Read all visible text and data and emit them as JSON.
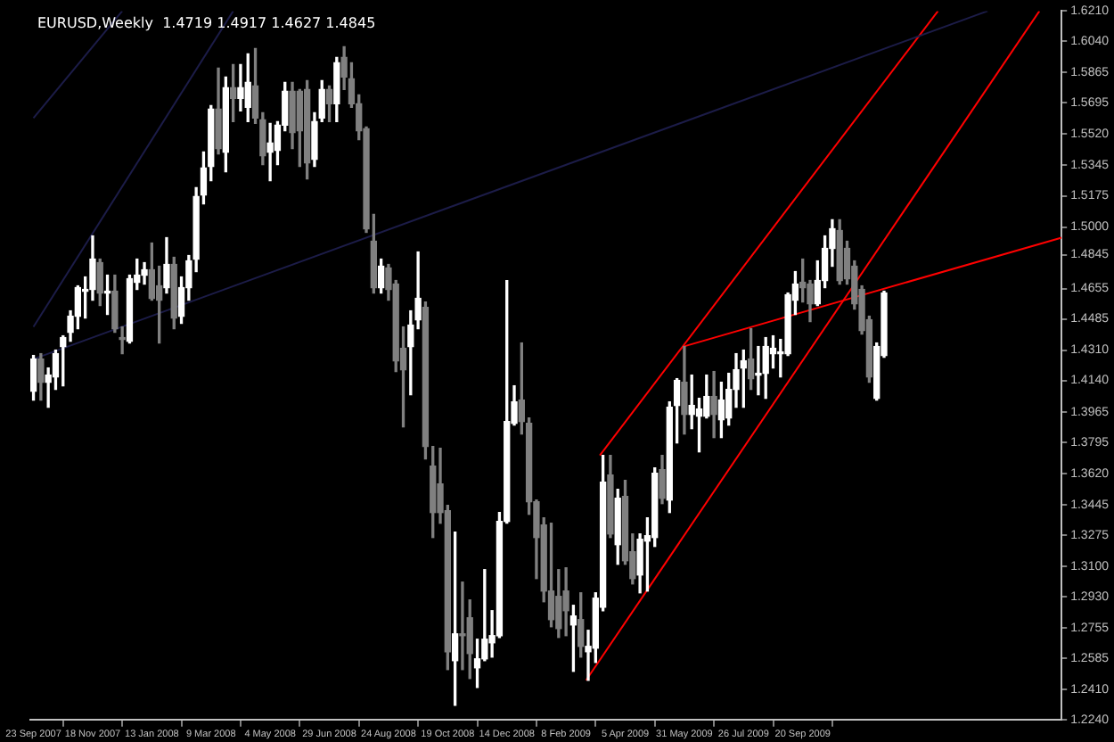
{
  "chart_data": {
    "type": "candlestick",
    "title": "EURUSD,Weekly  1.4719 1.4917 1.4627 1.4845",
    "x": [
      "2007-09-23",
      "2007-09-30",
      "2007-10-07",
      "2007-10-14",
      "2007-10-21",
      "2007-10-28",
      "2007-11-04",
      "2007-11-11",
      "2007-11-18",
      "2007-11-25",
      "2007-12-02",
      "2007-12-09",
      "2007-12-16",
      "2007-12-23",
      "2007-12-30",
      "2008-01-06",
      "2008-01-13",
      "2008-01-20",
      "2008-01-27",
      "2008-02-03",
      "2008-02-10",
      "2008-02-17",
      "2008-02-24",
      "2008-03-02",
      "2008-03-09",
      "2008-03-16",
      "2008-03-23",
      "2008-03-30",
      "2008-04-06",
      "2008-04-13",
      "2008-04-20",
      "2008-04-27",
      "2008-05-04",
      "2008-05-11",
      "2008-05-18",
      "2008-05-25",
      "2008-06-01",
      "2008-06-08",
      "2008-06-15",
      "2008-06-22",
      "2008-06-29",
      "2008-07-06",
      "2008-07-13",
      "2008-07-20",
      "2008-07-27",
      "2008-08-03",
      "2008-08-10",
      "2008-08-17",
      "2008-08-24",
      "2008-08-31",
      "2008-09-07",
      "2008-09-14",
      "2008-09-21",
      "2008-09-28",
      "2008-10-05",
      "2008-10-12",
      "2008-10-19",
      "2008-10-26",
      "2008-11-02",
      "2008-11-09",
      "2008-11-16",
      "2008-11-23",
      "2008-11-30",
      "2008-12-07",
      "2008-12-14",
      "2008-12-21",
      "2008-12-28",
      "2009-01-04",
      "2009-01-11",
      "2009-01-18",
      "2009-01-25",
      "2009-02-01",
      "2009-02-08",
      "2009-02-15",
      "2009-02-22",
      "2009-03-01",
      "2009-03-08",
      "2009-03-15",
      "2009-03-22",
      "2009-03-29",
      "2009-04-05",
      "2009-04-12",
      "2009-04-19",
      "2009-04-26",
      "2009-05-03",
      "2009-05-10",
      "2009-05-17",
      "2009-05-24",
      "2009-05-31",
      "2009-06-07",
      "2009-06-14",
      "2009-06-21",
      "2009-06-28",
      "2009-07-05",
      "2009-07-12",
      "2009-07-19",
      "2009-07-26",
      "2009-08-02",
      "2009-08-09",
      "2009-08-16",
      "2009-08-23",
      "2009-08-30",
      "2009-09-06",
      "2009-09-13",
      "2009-09-20",
      "2009-09-27",
      "2009-10-04",
      "2009-10-11",
      "2009-10-18",
      "2009-10-25",
      "2009-11-01",
      "2009-11-08",
      "2009-11-15",
      "2009-11-22",
      "2009-11-29",
      "2009-12-06"
    ],
    "ohlc": [
      [
        1.408,
        1.428,
        1.403,
        1.426
      ],
      [
        1.426,
        1.429,
        1.403,
        1.413
      ],
      [
        1.413,
        1.421,
        1.399,
        1.417
      ],
      [
        1.416,
        1.431,
        1.409,
        1.429
      ],
      [
        1.433,
        1.439,
        1.411,
        1.438
      ],
      [
        1.441,
        1.453,
        1.436,
        1.45
      ],
      [
        1.45,
        1.467,
        1.443,
        1.466
      ],
      [
        1.464,
        1.472,
        1.449,
        1.465
      ],
      [
        1.465,
        1.495,
        1.459,
        1.482
      ],
      [
        1.48,
        1.482,
        1.456,
        1.463
      ],
      [
        1.463,
        1.473,
        1.451,
        1.464
      ],
      [
        1.464,
        1.473,
        1.441,
        1.443
      ],
      [
        1.438,
        1.444,
        1.429,
        1.437
      ],
      [
        1.436,
        1.473,
        1.435,
        1.471
      ],
      [
        1.469,
        1.482,
        1.465,
        1.473
      ],
      [
        1.473,
        1.48,
        1.468,
        1.476
      ],
      [
        1.476,
        1.491,
        1.459,
        1.46
      ],
      [
        1.467,
        1.478,
        1.435,
        1.459
      ],
      [
        1.466,
        1.494,
        1.463,
        1.479
      ],
      [
        1.479,
        1.483,
        1.443,
        1.449
      ],
      [
        1.45,
        1.472,
        1.446,
        1.466
      ],
      [
        1.466,
        1.484,
        1.459,
        1.481
      ],
      [
        1.482,
        1.522,
        1.475,
        1.517
      ],
      [
        1.518,
        1.542,
        1.513,
        1.533
      ],
      [
        1.534,
        1.568,
        1.526,
        1.566
      ],
      [
        1.566,
        1.589,
        1.541,
        1.544
      ],
      [
        1.542,
        1.584,
        1.531,
        1.578
      ],
      [
        1.578,
        1.591,
        1.559,
        1.572
      ],
      [
        1.572,
        1.591,
        1.565,
        1.578
      ],
      [
        1.567,
        1.597,
        1.559,
        1.581
      ],
      [
        1.579,
        1.6,
        1.558,
        1.561
      ],
      [
        1.56,
        1.564,
        1.535,
        1.54
      ],
      [
        1.542,
        1.558,
        1.526,
        1.547
      ],
      [
        1.543,
        1.559,
        1.535,
        1.557
      ],
      [
        1.557,
        1.581,
        1.554,
        1.576
      ],
      [
        1.576,
        1.581,
        1.544,
        1.553
      ],
      [
        1.576,
        1.577,
        1.534,
        1.554
      ],
      [
        1.577,
        1.582,
        1.527,
        1.536
      ],
      [
        1.538,
        1.564,
        1.534,
        1.559
      ],
      [
        1.561,
        1.582,
        1.559,
        1.577
      ],
      [
        1.577,
        1.579,
        1.559,
        1.569
      ],
      [
        1.569,
        1.595,
        1.559,
        1.592
      ],
      [
        1.595,
        1.601,
        1.577,
        1.584
      ],
      [
        1.583,
        1.592,
        1.567,
        1.569
      ],
      [
        1.569,
        1.574,
        1.549,
        1.554
      ],
      [
        1.555,
        1.556,
        1.497,
        1.499
      ],
      [
        1.492,
        1.507,
        1.463,
        1.466
      ],
      [
        1.466,
        1.482,
        1.463,
        1.478
      ],
      [
        1.477,
        1.479,
        1.459,
        1.465
      ],
      [
        1.468,
        1.47,
        1.419,
        1.425
      ],
      [
        1.432,
        1.444,
        1.388,
        1.42
      ],
      [
        1.433,
        1.453,
        1.406,
        1.445
      ],
      [
        1.448,
        1.486,
        1.443,
        1.46
      ],
      [
        1.455,
        1.458,
        1.37,
        1.377
      ],
      [
        1.366,
        1.377,
        1.326,
        1.34
      ],
      [
        1.356,
        1.376,
        1.334,
        1.34
      ],
      [
        1.341,
        1.344,
        1.252,
        1.262
      ],
      [
        1.257,
        1.329,
        1.232,
        1.272
      ],
      [
        1.272,
        1.301,
        1.252,
        1.271
      ],
      [
        1.281,
        1.291,
        1.247,
        1.261
      ],
      [
        1.253,
        1.269,
        1.242,
        1.258
      ],
      [
        1.258,
        1.308,
        1.257,
        1.269
      ],
      [
        1.267,
        1.285,
        1.259,
        1.271
      ],
      [
        1.271,
        1.34,
        1.27,
        1.335
      ],
      [
        1.335,
        1.47,
        1.334,
        1.391
      ],
      [
        1.39,
        1.411,
        1.389,
        1.402
      ],
      [
        1.403,
        1.435,
        1.384,
        1.391
      ],
      [
        1.39,
        1.393,
        1.339,
        1.346
      ],
      [
        1.346,
        1.347,
        1.303,
        1.326
      ],
      [
        1.333,
        1.337,
        1.29,
        1.296
      ],
      [
        1.296,
        1.334,
        1.276,
        1.28
      ],
      [
        1.293,
        1.308,
        1.27,
        1.275
      ],
      [
        1.296,
        1.309,
        1.271,
        1.285
      ],
      [
        1.277,
        1.288,
        1.251,
        1.282
      ],
      [
        1.28,
        1.295,
        1.259,
        1.265
      ],
      [
        1.262,
        1.274,
        1.246,
        1.265
      ],
      [
        1.264,
        1.295,
        1.256,
        1.292
      ],
      [
        1.287,
        1.372,
        1.285,
        1.357
      ],
      [
        1.361,
        1.372,
        1.326,
        1.328
      ],
      [
        1.322,
        1.353,
        1.311,
        1.348
      ],
      [
        1.349,
        1.358,
        1.311,
        1.313
      ],
      [
        1.318,
        1.328,
        1.3,
        1.303
      ],
      [
        1.305,
        1.328,
        1.295,
        1.325
      ],
      [
        1.324,
        1.337,
        1.296,
        1.327
      ],
      [
        1.326,
        1.365,
        1.321,
        1.362
      ],
      [
        1.364,
        1.372,
        1.345,
        1.348
      ],
      [
        1.347,
        1.402,
        1.34,
        1.399
      ],
      [
        1.4,
        1.415,
        1.379,
        1.414
      ],
      [
        1.413,
        1.433,
        1.384,
        1.395
      ],
      [
        1.395,
        1.417,
        1.387,
        1.4
      ],
      [
        1.394,
        1.404,
        1.374,
        1.398
      ],
      [
        1.394,
        1.417,
        1.393,
        1.405
      ],
      [
        1.405,
        1.419,
        1.382,
        1.395
      ],
      [
        1.392,
        1.413,
        1.382,
        1.403
      ],
      [
        1.393,
        1.418,
        1.389,
        1.409
      ],
      [
        1.409,
        1.429,
        1.399,
        1.42
      ],
      [
        1.421,
        1.431,
        1.399,
        1.425
      ],
      [
        1.426,
        1.443,
        1.409,
        1.415
      ],
      [
        1.417,
        1.433,
        1.406,
        1.418
      ],
      [
        1.418,
        1.438,
        1.404,
        1.433
      ],
      [
        1.429,
        1.439,
        1.421,
        1.432
      ],
      [
        1.429,
        1.437,
        1.416,
        1.43
      ],
      [
        1.429,
        1.463,
        1.428,
        1.462
      ],
      [
        1.459,
        1.475,
        1.451,
        1.468
      ],
      [
        1.469,
        1.482,
        1.458,
        1.466
      ],
      [
        1.468,
        1.47,
        1.447,
        1.457
      ],
      [
        1.457,
        1.481,
        1.456,
        1.47
      ],
      [
        1.47,
        1.495,
        1.466,
        1.488
      ],
      [
        1.488,
        1.504,
        1.478,
        1.499
      ],
      [
        1.498,
        1.504,
        1.468,
        1.47
      ],
      [
        1.488,
        1.492,
        1.468,
        1.471
      ],
      [
        1.478,
        1.481,
        1.454,
        1.457
      ],
      [
        1.465,
        1.467,
        1.44,
        1.442
      ],
      [
        1.448,
        1.45,
        1.413,
        1.416
      ],
      [
        1.404,
        1.435,
        1.403,
        1.433
      ],
      [
        1.428,
        1.464,
        1.427,
        1.463
      ]
    ],
    "colors": [
      "#ffffff",
      "#808080",
      "#ffffff",
      "#ffffff",
      "#ffffff",
      "#ffffff",
      "#ffffff",
      "#ffffff",
      "#ffffff",
      "#808080",
      "#ffffff",
      "#808080",
      "#808080",
      "#ffffff",
      "#ffffff",
      "#ffffff",
      "#808080",
      "#808080",
      "#ffffff",
      "#808080",
      "#ffffff",
      "#ffffff",
      "#ffffff",
      "#ffffff",
      "#ffffff",
      "#808080",
      "#ffffff",
      "#808080",
      "#ffffff",
      "#ffffff",
      "#808080",
      "#808080",
      "#ffffff",
      "#ffffff",
      "#ffffff",
      "#808080",
      "#808080",
      "#808080",
      "#ffffff",
      "#ffffff",
      "#808080",
      "#ffffff",
      "#808080",
      "#808080",
      "#808080",
      "#808080",
      "#808080",
      "#ffffff",
      "#808080",
      "#808080",
      "#808080",
      "#ffffff",
      "#ffffff",
      "#808080",
      "#808080",
      "#808080",
      "#808080",
      "#ffffff",
      "#808080",
      "#808080",
      "#ffffff",
      "#ffffff",
      "#ffffff",
      "#ffffff",
      "#ffffff",
      "#ffffff",
      "#808080",
      "#808080",
      "#808080",
      "#808080",
      "#808080",
      "#808080",
      "#808080",
      "#ffffff",
      "#808080",
      "#ffffff",
      "#ffffff",
      "#ffffff",
      "#808080",
      "#ffffff",
      "#808080",
      "#808080",
      "#ffffff",
      "#ffffff",
      "#ffffff",
      "#808080",
      "#ffffff",
      "#ffffff",
      "#808080",
      "#ffffff",
      "#ffffff",
      "#ffffff",
      "#808080",
      "#ffffff",
      "#ffffff",
      "#ffffff",
      "#ffffff",
      "#808080",
      "#ffffff",
      "#ffffff",
      "#ffffff",
      "#ffffff",
      "#ffffff",
      "#ffffff",
      "#808080",
      "#808080",
      "#ffffff",
      "#ffffff",
      "#ffffff",
      "#808080",
      "#808080",
      "#808080",
      "#808080",
      "#808080",
      "#ffffff",
      "#ffffff"
    ],
    "series": [
      {
        "type": "line",
        "color": "#1c1c48",
        "x": [
          "2007-09-23",
          "2010-03-14"
        ],
        "values": [
          1.426,
          1.621
        ]
      },
      {
        "type": "line",
        "color": "#1c1c48",
        "x": [
          "2007-09-23",
          "2008-03-30"
        ],
        "values": [
          1.444,
          1.621
        ]
      },
      {
        "type": "line",
        "color": "#1c1c48",
        "x": [
          "2007-09-23",
          "2007-12-16"
        ],
        "values": [
          1.561,
          1.621
        ]
      },
      {
        "type": "line",
        "color": "#ff0000",
        "x": [
          "2009-03-12",
          "2010-01-26"
        ],
        "values": [
          1.372,
          1.621
        ]
      },
      {
        "type": "line",
        "color": "#ff0000",
        "x": [
          "2009-02-27",
          "2010-05-02"
        ],
        "values": [
          1.246,
          1.621
        ]
      },
      {
        "type": "line",
        "color": "#ff0000",
        "x": [
          "2009-05-30",
          "2010-05-23"
        ],
        "values": [
          1.433,
          1.494
        ]
      }
    ],
    "xlim": [
      "2007-09-20",
      "2010-05-23"
    ],
    "xticks": [
      {
        "value": "2007-09-23",
        "label": "23 Sep 2007"
      },
      {
        "value": "2007-11-18",
        "label": "18 Nov 2007"
      },
      {
        "value": "2008-01-13",
        "label": "13 Jan 2008"
      },
      {
        "value": "2008-03-09",
        "label": "9 Mar 2008"
      },
      {
        "value": "2008-05-04",
        "label": "4 May 2008"
      },
      {
        "value": "2008-06-29",
        "label": "29 Jun 2008"
      },
      {
        "value": "2008-08-24",
        "label": "24 Aug 2008"
      },
      {
        "value": "2008-10-19",
        "label": "19 Oct 2008"
      },
      {
        "value": "2008-12-14",
        "label": "14 Dec 2008"
      },
      {
        "value": "2009-02-08",
        "label": "8 Feb 2009"
      },
      {
        "value": "2009-04-05",
        "label": "5 Apr 2009"
      },
      {
        "value": "2009-05-31",
        "label": "31 May 2009"
      },
      {
        "value": "2009-07-26",
        "label": "26 Jul 2009"
      },
      {
        "value": "2009-09-20",
        "label": "20 Sep 2009"
      }
    ],
    "ylim": [
      1.224,
      1.621
    ],
    "yticks": [
      {
        "value": 1.621,
        "label": "1.6210"
      },
      {
        "value": 1.604,
        "label": "1.6040"
      },
      {
        "value": 1.5865,
        "label": "1.5865"
      },
      {
        "value": 1.5695,
        "label": "1.5695"
      },
      {
        "value": 1.552,
        "label": "1.5520"
      },
      {
        "value": 1.5345,
        "label": "1.5345"
      },
      {
        "value": 1.5175,
        "label": "1.5175"
      },
      {
        "value": 1.5,
        "label": "1.5000"
      },
      {
        "value": 1.4845,
        "label": "1.4845"
      },
      {
        "value": 1.4655,
        "label": "1.4655"
      },
      {
        "value": 1.4485,
        "label": "1.4485"
      },
      {
        "value": 1.431,
        "label": "1.4310"
      },
      {
        "value": 1.414,
        "label": "1.4140"
      },
      {
        "value": 1.3965,
        "label": "1.3965"
      },
      {
        "value": 1.3795,
        "label": "1.3795"
      },
      {
        "value": 1.362,
        "label": "1.3620"
      },
      {
        "value": 1.3445,
        "label": "1.3445"
      },
      {
        "value": 1.3275,
        "label": "1.3275"
      },
      {
        "value": 1.31,
        "label": "1.3100"
      },
      {
        "value": 1.293,
        "label": "1.2930"
      },
      {
        "value": 1.2755,
        "label": "1.2755"
      },
      {
        "value": 1.2585,
        "label": "1.2585"
      },
      {
        "value": 1.241,
        "label": "1.2410"
      },
      {
        "value": 1.224,
        "label": "1.2240"
      }
    ]
  }
}
